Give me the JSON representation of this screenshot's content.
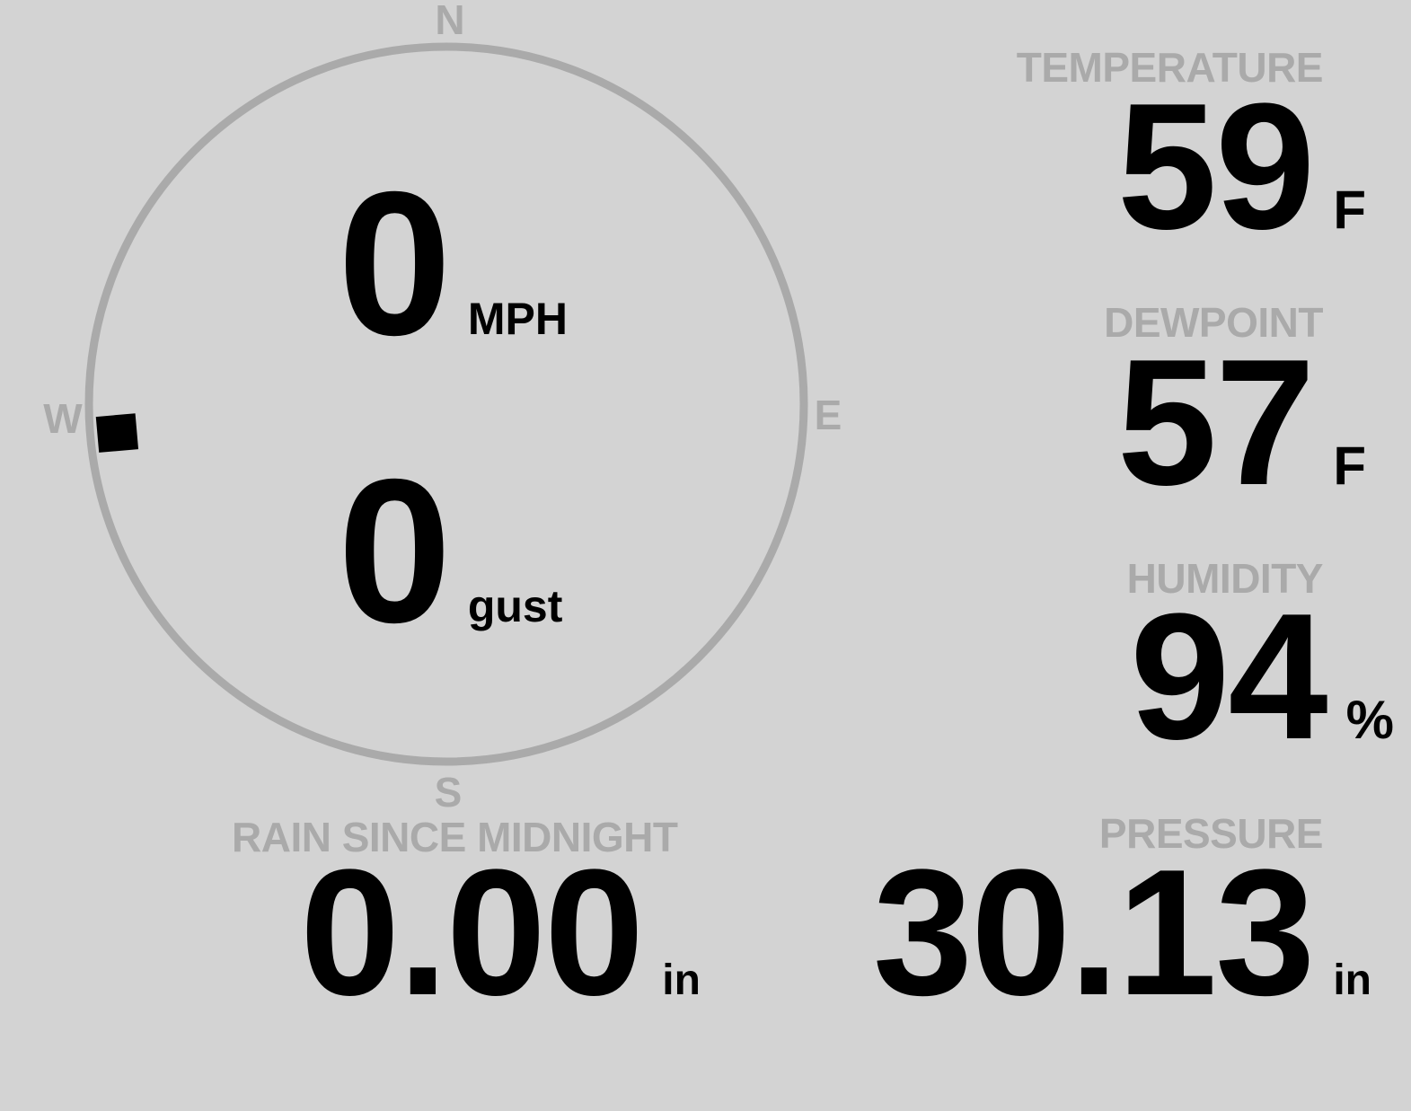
{
  "colors": {
    "background": "#d3d3d3",
    "label": "#aaaaaa",
    "value": "#000000",
    "dial": "#aaaaaa",
    "needle": "#000000"
  },
  "wind": {
    "compass": {
      "n": "N",
      "e": "E",
      "s": "S",
      "w": "W"
    },
    "direction_deg": 265,
    "speed": "0",
    "speed_unit": "MPH",
    "gust": "0",
    "gust_unit": "gust"
  },
  "temperature": {
    "label": "TEMPERATURE",
    "value": "59",
    "unit": "F"
  },
  "dewpoint": {
    "label": "DEWPOINT",
    "value": "57",
    "unit": "F"
  },
  "humidity": {
    "label": "HUMIDITY",
    "value": "94",
    "unit": "%"
  },
  "pressure": {
    "label": "PRESSURE",
    "value": "30.13",
    "unit": "in"
  },
  "rain": {
    "label": "RAIN SINCE MIDNIGHT",
    "value": "0.00",
    "unit": "in"
  }
}
